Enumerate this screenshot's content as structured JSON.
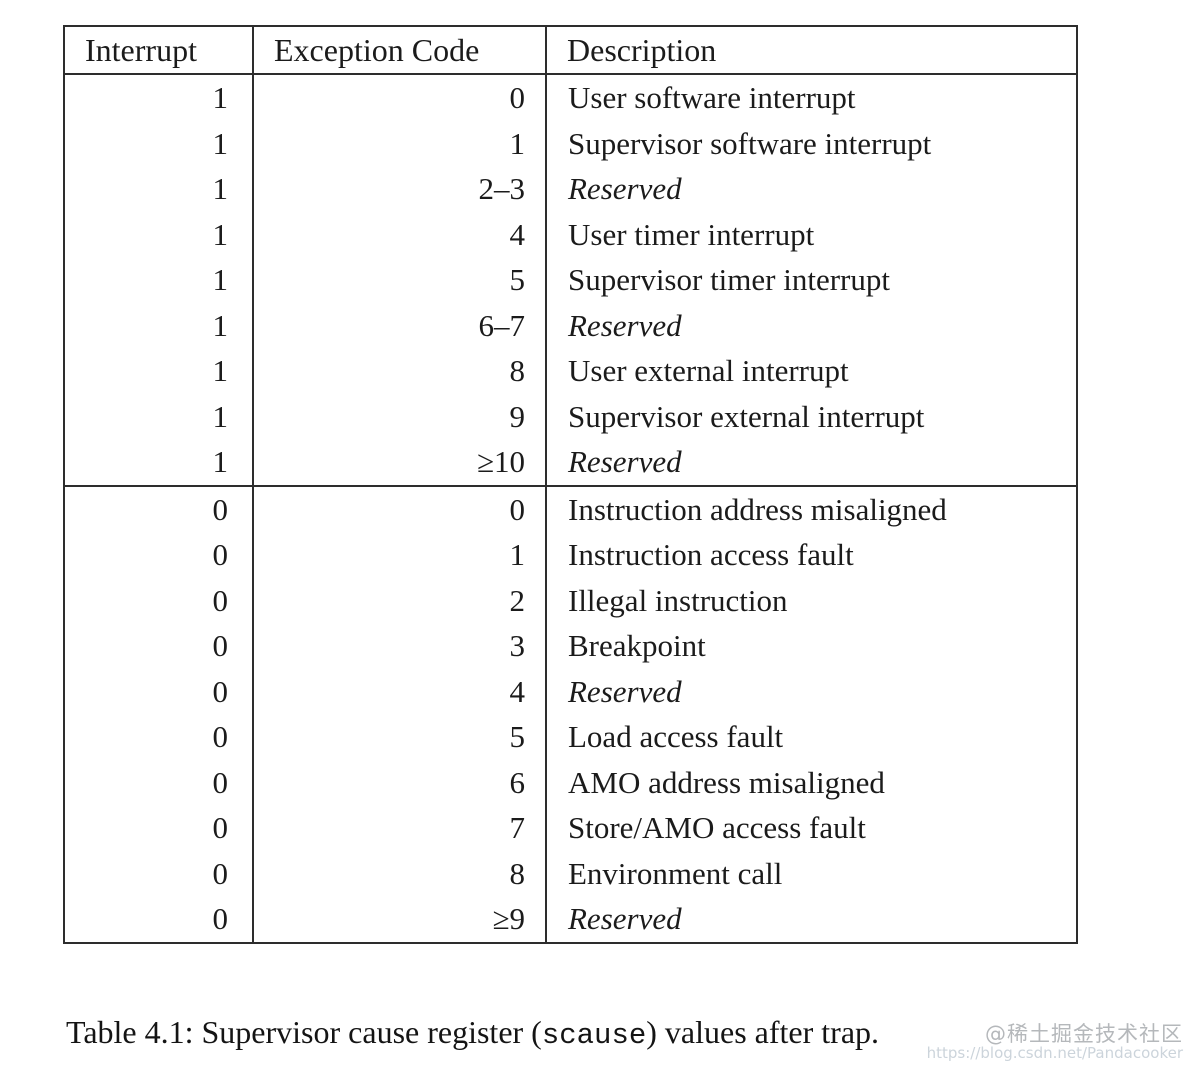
{
  "table": {
    "headers": {
      "interrupt": "Interrupt",
      "exception_code": "Exception Code",
      "description": "Description"
    },
    "sections": [
      {
        "rows": [
          {
            "interrupt": "1",
            "code": "0",
            "description": "User software interrupt"
          },
          {
            "interrupt": "1",
            "code": "1",
            "description": "Supervisor software interrupt"
          },
          {
            "interrupt": "1",
            "code": "2–3",
            "description": "Reserved"
          },
          {
            "interrupt": "1",
            "code": "4",
            "description": "User timer interrupt"
          },
          {
            "interrupt": "1",
            "code": "5",
            "description": "Supervisor timer interrupt"
          },
          {
            "interrupt": "1",
            "code": "6–7",
            "description": "Reserved"
          },
          {
            "interrupt": "1",
            "code": "8",
            "description": "User external interrupt"
          },
          {
            "interrupt": "1",
            "code": "9",
            "description": "Supervisor external interrupt"
          },
          {
            "interrupt": "1",
            "code": "≥10",
            "description": "Reserved"
          }
        ]
      },
      {
        "rows": [
          {
            "interrupt": "0",
            "code": "0",
            "description": "Instruction address misaligned"
          },
          {
            "interrupt": "0",
            "code": "1",
            "description": "Instruction access fault"
          },
          {
            "interrupt": "0",
            "code": "2",
            "description": "Illegal instruction"
          },
          {
            "interrupt": "0",
            "code": "3",
            "description": "Breakpoint"
          },
          {
            "interrupt": "0",
            "code": "4",
            "description": "Reserved"
          },
          {
            "interrupt": "0",
            "code": "5",
            "description": "Load access fault"
          },
          {
            "interrupt": "0",
            "code": "6",
            "description": "AMO address misaligned"
          },
          {
            "interrupt": "0",
            "code": "7",
            "description": "Store/AMO access fault"
          },
          {
            "interrupt": "0",
            "code": "8",
            "description": "Environment call"
          },
          {
            "interrupt": "0",
            "code": "≥9",
            "description": "Reserved"
          }
        ]
      }
    ]
  },
  "caption": {
    "prefix": "Table 4.1: Supervisor cause register (",
    "code": "scause",
    "suffix": ") values after trap."
  },
  "watermark": {
    "line1": "@稀土掘金技术社区",
    "line2": "https://blog.csdn.net/Pandacooker"
  },
  "colors": {
    "border": "#2d2d2d",
    "text": "#1b1b1b",
    "watermark_line1": "#b5b8bb",
    "watermark_line2": "#ccd4db"
  }
}
